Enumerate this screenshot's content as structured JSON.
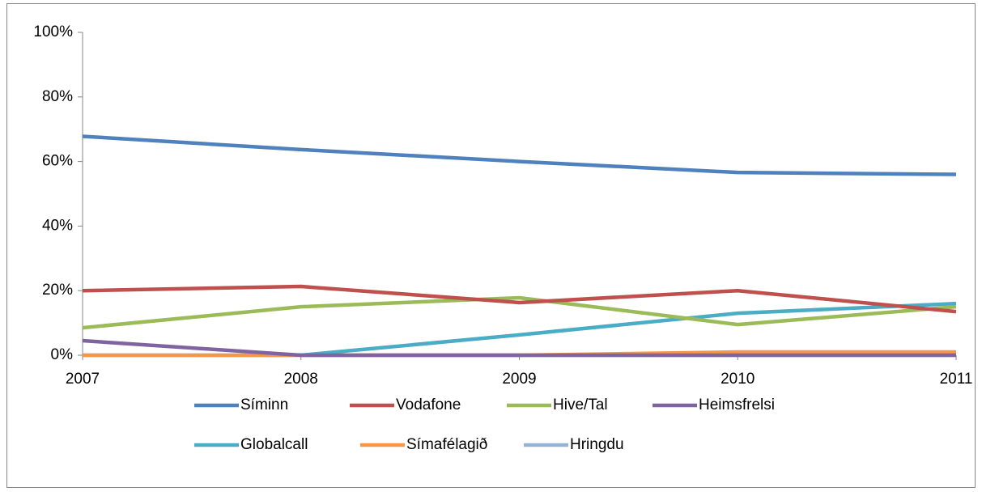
{
  "chart_data": {
    "type": "line",
    "categories": [
      "2007",
      "2008",
      "2009",
      "2010",
      "2011"
    ],
    "series": [
      {
        "name": "Síminn",
        "color": "#4f81bd",
        "values": [
          67.8,
          63.7,
          60,
          56.6,
          56
        ]
      },
      {
        "name": "Vodafone",
        "color": "#c0504d",
        "values": [
          20,
          21.3,
          16.3,
          20,
          13.5
        ]
      },
      {
        "name": "Hive/Tal",
        "color": "#9bbb59",
        "values": [
          8.5,
          15,
          17.8,
          9.5,
          15
        ]
      },
      {
        "name": "Heimsfrelsi",
        "color": "#8064a2",
        "values": [
          4.5,
          0,
          0,
          0,
          0
        ]
      },
      {
        "name": "Globalcall",
        "color": "#4bacc6",
        "values": [
          null,
          0,
          6.3,
          13,
          16
        ]
      },
      {
        "name": "Símafélagið",
        "color": "#f79646",
        "values": [
          0,
          0,
          0,
          1,
          1
        ]
      },
      {
        "name": "Hringdu",
        "color": "#95b3d7",
        "values": [
          0,
          0,
          0,
          0,
          0
        ]
      }
    ],
    "ylim": [
      0,
      100
    ],
    "yticks": [
      {
        "value": 0,
        "label": "0%"
      },
      {
        "value": 20,
        "label": "20%"
      },
      {
        "value": 40,
        "label": "40%"
      },
      {
        "value": 60,
        "label": "60%"
      },
      {
        "value": 80,
        "label": "80%"
      },
      {
        "value": 100,
        "label": "100%"
      }
    ],
    "legend": "bottom"
  }
}
